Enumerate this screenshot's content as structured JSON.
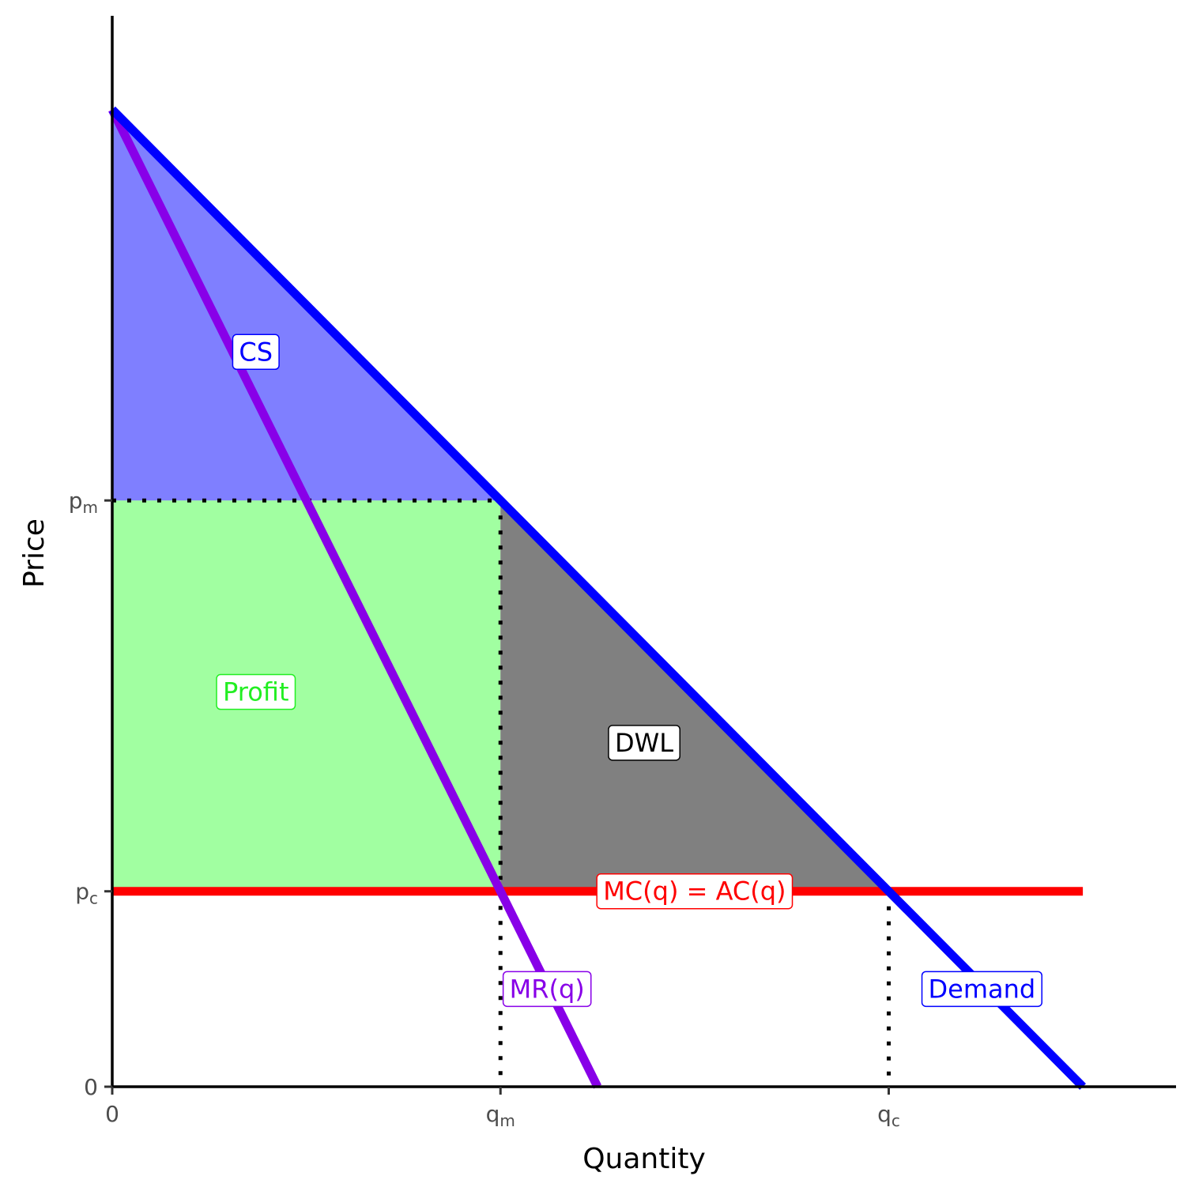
{
  "chart_data": {
    "type": "line",
    "xlabel": "Quantity",
    "ylabel": "Price",
    "xlim": [
      0,
      137
    ],
    "ylim": [
      0,
      137
    ],
    "x_ticks": [
      {
        "value": 0,
        "base": "0",
        "sub": ""
      },
      {
        "value": 50,
        "base": "q",
        "sub": "m"
      },
      {
        "value": 100,
        "base": "q",
        "sub": "c"
      }
    ],
    "y_ticks": [
      {
        "value": 0,
        "base": "0",
        "sub": ""
      },
      {
        "value": 25,
        "base": "p",
        "sub": "c"
      },
      {
        "value": 75,
        "base": "p",
        "sub": "m"
      }
    ],
    "series": [
      {
        "name": "Demand",
        "color": "#0000ff",
        "points": [
          [
            0,
            125
          ],
          [
            125,
            0
          ]
        ]
      },
      {
        "name": "MR(q)",
        "color": "#8800e8",
        "points": [
          [
            0,
            125
          ],
          [
            62.5,
            0
          ]
        ]
      },
      {
        "name": "MC(q) = AC(q)",
        "color": "#ff0000",
        "points": [
          [
            0,
            25
          ],
          [
            125,
            25
          ]
        ]
      }
    ],
    "areas": [
      {
        "name": "CS",
        "color": "#0000ff",
        "opacity": 0.5,
        "points": [
          [
            0,
            125
          ],
          [
            0,
            75
          ],
          [
            50,
            75
          ]
        ]
      },
      {
        "name": "Profit",
        "color": "#00ff00",
        "opacity": 0.37,
        "points": [
          [
            0,
            75
          ],
          [
            50,
            75
          ],
          [
            50,
            25
          ],
          [
            0,
            25
          ]
        ]
      },
      {
        "name": "DWL",
        "color": "#808080",
        "opacity": 1,
        "points": [
          [
            50,
            75
          ],
          [
            50,
            25
          ],
          [
            100,
            25
          ]
        ]
      }
    ],
    "guides": [
      {
        "points": [
          [
            0,
            75
          ],
          [
            50,
            75
          ]
        ]
      },
      {
        "points": [
          [
            50,
            75
          ],
          [
            50,
            0
          ]
        ]
      },
      {
        "points": [
          [
            100,
            25
          ],
          [
            100,
            0
          ]
        ]
      }
    ],
    "labels": [
      {
        "text": "CS",
        "color": "#0000ff",
        "border": "#0000ff",
        "x": 18.5,
        "y": 94
      },
      {
        "text": "Profit",
        "color": "#22ee22",
        "border": "#22ee22",
        "x": 18.5,
        "y": 50.5
      },
      {
        "text": "DWL",
        "color": "#000000",
        "border": "#000000",
        "x": 68.5,
        "y": 44
      },
      {
        "text": "MC(q) = AC(q)",
        "color": "#ff0000",
        "border": "#ff0000",
        "x": 75,
        "y": 25
      },
      {
        "text": "MR(q)",
        "color": "#8800e8",
        "border": "#8800e8",
        "x": 56,
        "y": 12.5
      },
      {
        "text": "Demand",
        "color": "#0000ff",
        "border": "#0000ff",
        "x": 112,
        "y": 12.5
      }
    ]
  }
}
